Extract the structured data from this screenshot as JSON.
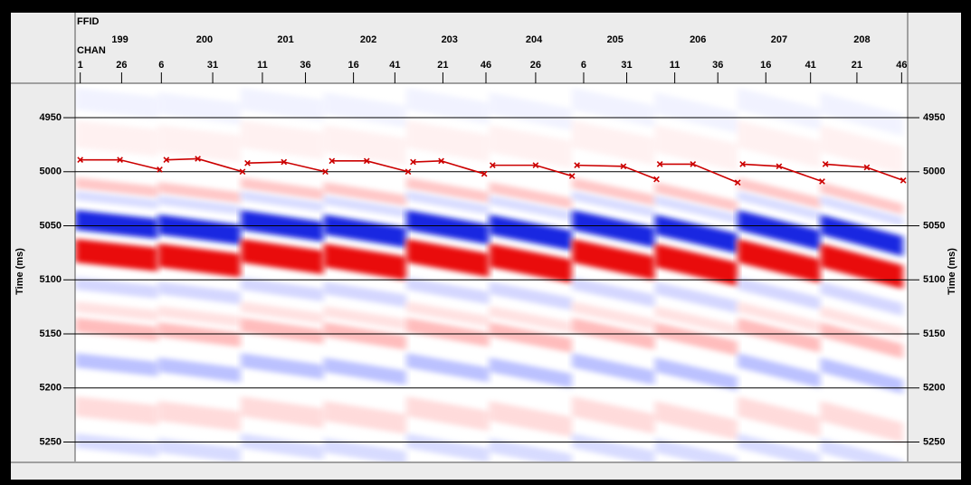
{
  "chart_data": {
    "type": "line",
    "y_label": "Time (ms)",
    "ffid_label": "FFID",
    "chan_label": "CHAN",
    "xlim": [
      0,
      500
    ],
    "ylim": [
      4919,
      5268
    ],
    "y_inverted": true,
    "grid": true,
    "ffid_ticks": [
      {
        "value": 26,
        "label": "199"
      },
      {
        "value": 77,
        "label": "200"
      },
      {
        "value": 126,
        "label": "201"
      },
      {
        "value": 176,
        "label": "202"
      },
      {
        "value": 225,
        "label": "203"
      },
      {
        "value": 276,
        "label": "204"
      },
      {
        "value": 325,
        "label": "205"
      },
      {
        "value": 375,
        "label": "206"
      },
      {
        "value": 424,
        "label": "207"
      },
      {
        "value": 474,
        "label": "208"
      }
    ],
    "xticks": [
      {
        "value": 2,
        "label": "1"
      },
      {
        "value": 27,
        "label": "26"
      },
      {
        "value": 51,
        "label": "6"
      },
      {
        "value": 82,
        "label": "31"
      },
      {
        "value": 112,
        "label": "11"
      },
      {
        "value": 138,
        "label": "36"
      },
      {
        "value": 167,
        "label": "16"
      },
      {
        "value": 192,
        "label": "41"
      },
      {
        "value": 221,
        "label": "21"
      },
      {
        "value": 247,
        "label": "46"
      },
      {
        "value": 277,
        "label": "26"
      },
      {
        "value": 306,
        "label": "6"
      },
      {
        "value": 332,
        "label": "31"
      },
      {
        "value": 361,
        "label": "11"
      },
      {
        "value": 387,
        "label": "36"
      },
      {
        "value": 416,
        "label": "16"
      },
      {
        "value": 443,
        "label": "41"
      },
      {
        "value": 471,
        "label": "21"
      },
      {
        "value": 498,
        "label": "46"
      }
    ],
    "yticks": [
      4950,
      5000,
      5050,
      5100,
      5150,
      5200,
      5250
    ],
    "series": [
      {
        "color": "#cc0000",
        "x": [
          2,
          26,
          50,
          52,
          54,
          73,
          100,
          101,
          103,
          125,
          150,
          152,
          154,
          175,
          200,
          201,
          203,
          220,
          246,
          248,
          251,
          277,
          299,
          300,
          302,
          330,
          350,
          351,
          352,
          372,
          399,
          400,
          402,
          424,
          450,
          451,
          452,
          477,
          499
        ],
        "values": [
          4989,
          4989,
          4998,
          null,
          4989,
          4988,
          5000,
          null,
          4992,
          4991,
          5000,
          null,
          4990,
          4990,
          5000,
          null,
          4991,
          4990,
          5002,
          null,
          4994,
          4994,
          5004,
          null,
          4994,
          4995,
          5007,
          null,
          4993,
          4993,
          5010,
          null,
          4993,
          4995,
          5009,
          null,
          4993,
          4996,
          5008
        ]
      }
    ]
  }
}
